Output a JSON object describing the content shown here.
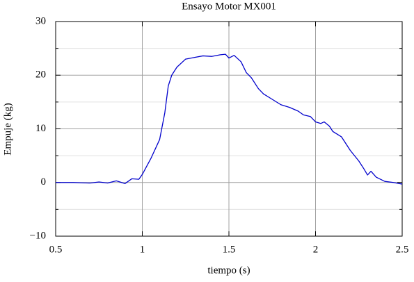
{
  "chart_data": {
    "type": "line",
    "title": "Ensayo Motor MX001",
    "xlabel": "tiempo (s)",
    "ylabel": "Empuje (kg)",
    "x": [
      0.5,
      0.6,
      0.7,
      0.75,
      0.8,
      0.85,
      0.9,
      0.94,
      0.98,
      1.0,
      1.05,
      1.1,
      1.13,
      1.15,
      1.17,
      1.2,
      1.25,
      1.3,
      1.35,
      1.4,
      1.45,
      1.48,
      1.5,
      1.53,
      1.57,
      1.6,
      1.63,
      1.67,
      1.7,
      1.75,
      1.8,
      1.85,
      1.9,
      1.93,
      1.97,
      2.0,
      2.03,
      2.05,
      2.08,
      2.1,
      2.15,
      2.2,
      2.25,
      2.28,
      2.3,
      2.32,
      2.35,
      2.4,
      2.45,
      2.5
    ],
    "values": [
      0,
      0,
      -0.1,
      0.1,
      -0.1,
      0.3,
      -0.2,
      0.7,
      0.6,
      1.5,
      4.5,
      8,
      13,
      18,
      20,
      21.5,
      23,
      23.3,
      23.6,
      23.5,
      23.8,
      23.9,
      23.2,
      23.7,
      22.5,
      20.5,
      19.5,
      17.5,
      16.5,
      15.5,
      14.5,
      14,
      13.3,
      12.6,
      12.3,
      11.3,
      11,
      11.3,
      10.5,
      9.5,
      8.5,
      6,
      4,
      2.5,
      1.4,
      2.1,
      1,
      0.2,
      0,
      -0.3
    ],
    "color": "#0000cc",
    "xlim": [
      0.5,
      2.5
    ],
    "xticks": [
      0.5,
      1,
      1.5,
      2,
      2.5
    ],
    "ylim": [
      -10,
      30
    ],
    "yticks": [
      {
        "value": -10,
        "label": "−10"
      },
      0,
      10,
      20,
      30
    ],
    "yminor": [
      -5,
      5,
      15,
      25
    ],
    "grid": true
  }
}
